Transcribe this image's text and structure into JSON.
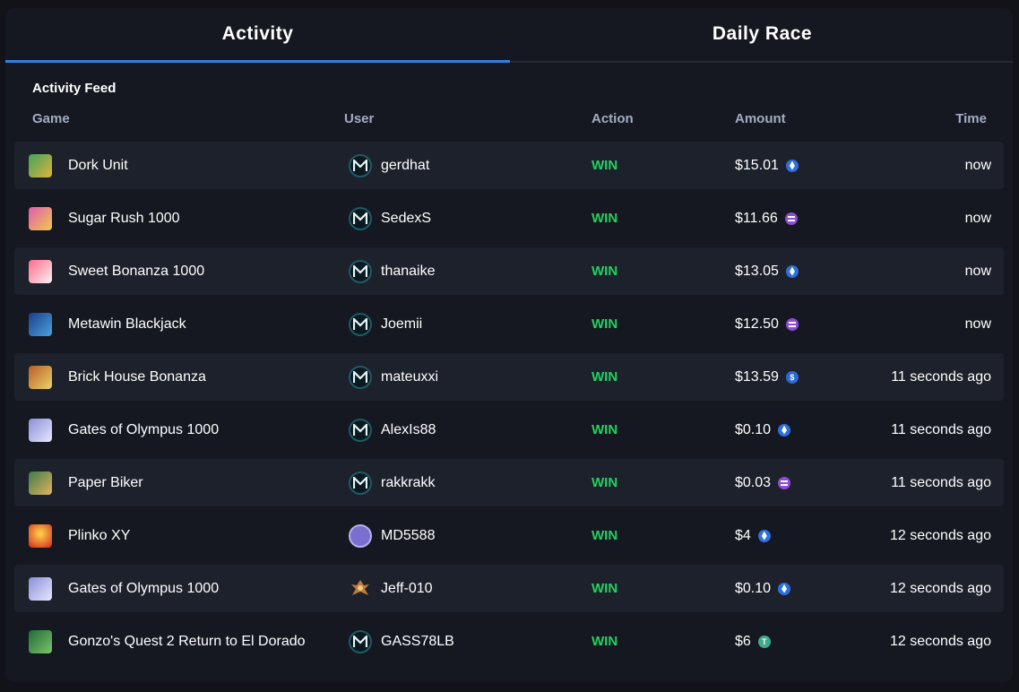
{
  "tabs": [
    {
      "label": "Activity",
      "active": true
    },
    {
      "label": "Daily Race",
      "active": false
    }
  ],
  "feed": {
    "title": "Activity Feed",
    "columns": {
      "game": "Game",
      "user": "User",
      "action": "Action",
      "amount": "Amount",
      "time": "Time"
    },
    "rows": [
      {
        "game": "Dork Unit",
        "game_icon": "dork-unit-icon",
        "user": "gerdhat",
        "avatar": "metawin-avatar",
        "action": "WIN",
        "amount": "$15.01",
        "coin": "eth-icon",
        "time": "now"
      },
      {
        "game": "Sugar Rush 1000",
        "game_icon": "sugar-rush-icon",
        "user": "SedexS",
        "avatar": "metawin-avatar",
        "action": "WIN",
        "amount": "$11.66",
        "coin": "sol-icon",
        "time": "now"
      },
      {
        "game": "Sweet Bonanza 1000",
        "game_icon": "sweet-bonanza-icon",
        "user": "thanaike",
        "avatar": "metawin-avatar",
        "action": "WIN",
        "amount": "$13.05",
        "coin": "eth-icon",
        "time": "now"
      },
      {
        "game": "Metawin Blackjack",
        "game_icon": "blackjack-icon",
        "user": "Joemii",
        "avatar": "metawin-avatar",
        "action": "WIN",
        "amount": "$12.50",
        "coin": "sol-icon",
        "time": "now"
      },
      {
        "game": "Brick House Bonanza",
        "game_icon": "brick-house-icon",
        "user": "mateuxxi",
        "avatar": "metawin-avatar",
        "action": "WIN",
        "amount": "$13.59",
        "coin": "usdc-icon",
        "time": "11 seconds ago"
      },
      {
        "game": "Gates of Olympus 1000",
        "game_icon": "gates-olympus-icon",
        "user": "AlexIs88",
        "avatar": "metawin-avatar",
        "action": "WIN",
        "amount": "$0.10",
        "coin": "eth-icon",
        "time": "11 seconds ago"
      },
      {
        "game": "Paper Biker",
        "game_icon": "paper-biker-icon",
        "user": "rakkrakk",
        "avatar": "metawin-avatar",
        "action": "WIN",
        "amount": "$0.03",
        "coin": "sol-icon",
        "time": "11 seconds ago"
      },
      {
        "game": "Plinko XY",
        "game_icon": "plinko-icon",
        "user": "MD5588",
        "avatar": "purple-avatar",
        "action": "WIN",
        "amount": "$4",
        "coin": "eth-icon",
        "time": "12 seconds ago"
      },
      {
        "game": "Gates of Olympus 1000",
        "game_icon": "gates-olympus-icon",
        "user": "Jeff-010",
        "avatar": "character-avatar",
        "action": "WIN",
        "amount": "$0.10",
        "coin": "eth-icon",
        "time": "12 seconds ago"
      },
      {
        "game": "Gonzo's Quest 2 Return to El Dorado",
        "game_icon": "gonzos-quest-icon",
        "user": "GASS78LB",
        "avatar": "metawin-avatar",
        "action": "WIN",
        "amount": "$6",
        "coin": "usdt-icon",
        "time": "12 seconds ago"
      }
    ]
  },
  "colors": {
    "background": "#111319",
    "panel": "#151820",
    "row_alt": "#1d212b",
    "accent": "#2f7fe6",
    "win": "#23d160",
    "header_text": "#a3acc4"
  }
}
